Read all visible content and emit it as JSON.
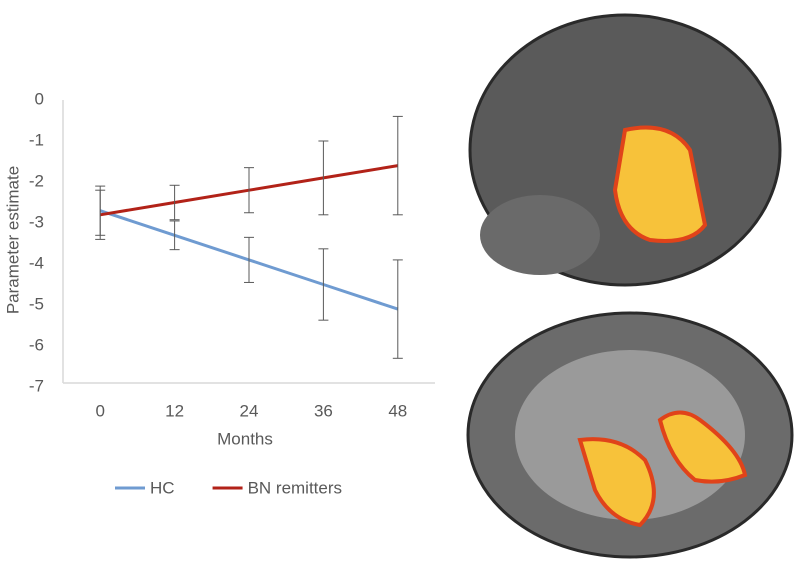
{
  "chart_data": {
    "type": "line",
    "x_label": "Months",
    "y_label": "Parameter estimate",
    "x": [
      0,
      12,
      24,
      36,
      48
    ],
    "xlim": [
      -6,
      54
    ],
    "xticks": [
      0,
      12,
      24,
      36,
      48
    ],
    "ylim": [
      -7,
      0
    ],
    "yticks": [
      0,
      -1,
      -2,
      -3,
      -4,
      -5,
      -6,
      -7
    ],
    "series": [
      {
        "name": "HC",
        "color": "#6f9bd1",
        "values": [
          -2.7,
          -3.3,
          -3.9,
          -4.5,
          -5.1
        ],
        "errors": [
          0.6,
          0.35,
          0.55,
          0.87,
          1.2
        ]
      },
      {
        "name": "BN remitters",
        "color": "#b22218",
        "values": [
          -2.8,
          -2.5,
          -2.2,
          -1.9,
          -1.6
        ],
        "errors": [
          0.6,
          0.42,
          0.55,
          0.9,
          1.2
        ]
      }
    ],
    "legend": "bottom"
  }
}
